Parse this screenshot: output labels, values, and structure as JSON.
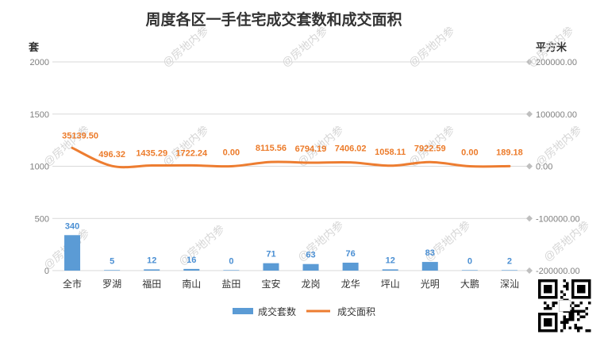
{
  "chart_data": {
    "type": "bar+line",
    "title": "周度各区一手住宅成交套数和成交面积",
    "left_axis_label": "套",
    "right_axis_label": "平方米",
    "categories": [
      "全市",
      "罗湖",
      "福田",
      "南山",
      "盐田",
      "宝安",
      "龙岗",
      "龙华",
      "坪山",
      "光明",
      "大鹏",
      "深汕"
    ],
    "series": [
      {
        "name": "成交套数",
        "type": "bar",
        "axis": "left",
        "values": [
          340,
          5,
          12,
          16,
          0,
          71,
          63,
          76,
          12,
          83,
          0,
          2
        ],
        "labels": [
          "340",
          "5",
          "12",
          "16",
          "0",
          "71",
          "63",
          "76",
          "12",
          "83",
          "0",
          "2"
        ],
        "color": "#5b9bd5"
      },
      {
        "name": "成交面积",
        "type": "line",
        "axis": "right",
        "values": [
          35139.5,
          496.32,
          1435.29,
          1722.24,
          0.0,
          8115.56,
          6794.19,
          7406.02,
          1058.11,
          7922.59,
          0.0,
          189.18
        ],
        "labels": [
          "35139.50",
          "496.32",
          "1435.29",
          "1722.24",
          "0.00",
          "8115.56",
          "6794.19",
          "7406.02",
          "1058.11",
          "7922.59",
          "0.00",
          "189.18"
        ],
        "color": "#ed7d31"
      }
    ],
    "left_ylim": [
      0,
      2000
    ],
    "left_ticks": [
      0,
      500,
      1000,
      1500,
      2000
    ],
    "left_tick_labels": [
      "0",
      "500",
      "1000",
      "1500",
      "2000"
    ],
    "right_ylim": [
      -200000,
      200000
    ],
    "right_ticks": [
      -200000,
      -100000,
      0,
      100000,
      200000
    ],
    "right_tick_labels": [
      "-200000.00",
      "-100000.00",
      "0.00",
      "100000.00",
      "200000.00"
    ],
    "grid": true,
    "legend": "bottom",
    "legend_labels": [
      "成交套数",
      "成交面积"
    ]
  },
  "watermark": "@房地内参"
}
